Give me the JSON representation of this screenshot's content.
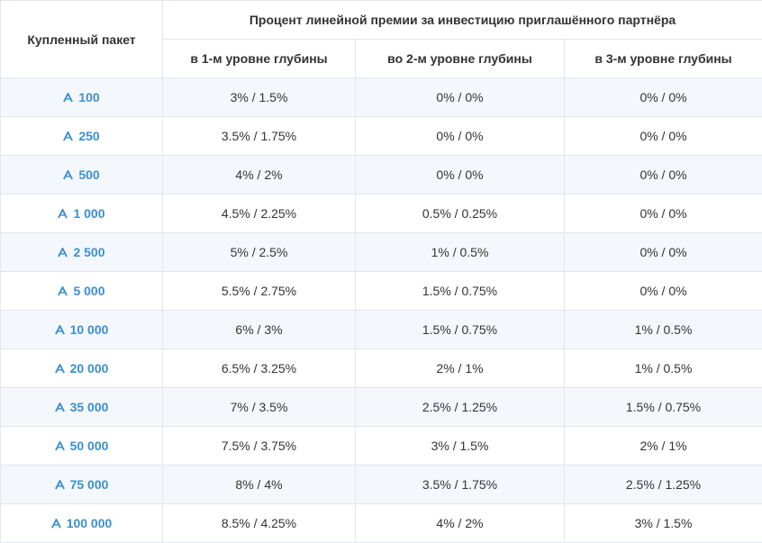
{
  "header": {
    "package_label": "Купленный пакет",
    "group_label": "Процент линейной премии за инвестицию приглашённого партнёра",
    "levels": [
      "в 1-м уровне глубины",
      "во 2-м уровне глубины",
      "в 3-м уровне глубины"
    ]
  },
  "accent_color": "#3a8fd0",
  "rows": [
    {
      "package": "100",
      "l1": "3% / 1.5%",
      "l2": "0% / 0%",
      "l3": "0% / 0%"
    },
    {
      "package": "250",
      "l1": "3.5% / 1.75%",
      "l2": "0% / 0%",
      "l3": "0% / 0%"
    },
    {
      "package": "500",
      "l1": "4% / 2%",
      "l2": "0% / 0%",
      "l3": "0% / 0%"
    },
    {
      "package": "1 000",
      "l1": "4.5% / 2.25%",
      "l2": "0.5% / 0.25%",
      "l3": "0% / 0%"
    },
    {
      "package": "2 500",
      "l1": "5% / 2.5%",
      "l2": "1% / 0.5%",
      "l3": "0% / 0%"
    },
    {
      "package": "5 000",
      "l1": "5.5% / 2.75%",
      "l2": "1.5% / 0.75%",
      "l3": "0% / 0%"
    },
    {
      "package": "10 000",
      "l1": "6% / 3%",
      "l2": "1.5% / 0.75%",
      "l3": "1% / 0.5%"
    },
    {
      "package": "20 000",
      "l1": "6.5% / 3.25%",
      "l2": "2% / 1%",
      "l3": "1% / 0.5%"
    },
    {
      "package": "35 000",
      "l1": "7% / 3.5%",
      "l2": "2.5% / 1.25%",
      "l3": "1.5% / 0.75%"
    },
    {
      "package": "50 000",
      "l1": "7.5% / 3.75%",
      "l2": "3% / 1.5%",
      "l3": "2% / 1%"
    },
    {
      "package": "75 000",
      "l1": "8% / 4%",
      "l2": "3.5% / 1.75%",
      "l3": "2.5% / 1.25%"
    },
    {
      "package": "100 000",
      "l1": "8.5% / 4.25%",
      "l2": "4% / 2%",
      "l3": "3% / 1.5%"
    }
  ]
}
